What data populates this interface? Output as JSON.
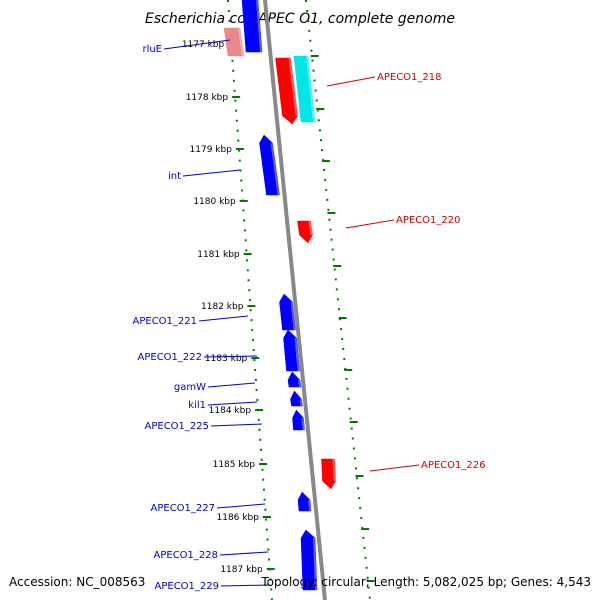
{
  "title": "Escherichia coli APEC O1, complete genome",
  "footer": {
    "accession": "Accession: NC_008563",
    "topology": "Topology: circular; Length: 5,082,025 bp; Genes: 4,543"
  },
  "colors": {
    "forward_gene": "#0000ff",
    "reverse_gene": "#ff0000",
    "label_forward": "#0000cc",
    "label_reverse": "#cc0000",
    "backbone": "#888888",
    "tick": "#007700",
    "cyan_gene": "#00e6e6",
    "pink_gene": "#e88a8a"
  },
  "ruler": [
    {
      "label": "1177 kbp"
    },
    {
      "label": "1178 kbp"
    },
    {
      "label": "1179 kbp"
    },
    {
      "label": "1180 kbp"
    },
    {
      "label": "1181 kbp"
    },
    {
      "label": "1182 kbp"
    },
    {
      "label": "1183 kbp"
    },
    {
      "label": "1184 kbp"
    },
    {
      "label": "1185 kbp"
    },
    {
      "label": "1186 kbp"
    },
    {
      "label": "1187 kbp"
    }
  ],
  "genes_left": [
    {
      "name": "rluE"
    },
    {
      "name": "int"
    },
    {
      "name": "APECO1_221"
    },
    {
      "name": "APECO1_222"
    },
    {
      "name": "gamW"
    },
    {
      "name": "kil1"
    },
    {
      "name": "APECO1_225"
    },
    {
      "name": "APECO1_227"
    },
    {
      "name": "APECO1_228"
    },
    {
      "name": "APECO1_229"
    }
  ],
  "genes_right": [
    {
      "name": "APECO1_218"
    },
    {
      "name": "APECO1_220"
    },
    {
      "name": "APECO1_226"
    }
  ]
}
